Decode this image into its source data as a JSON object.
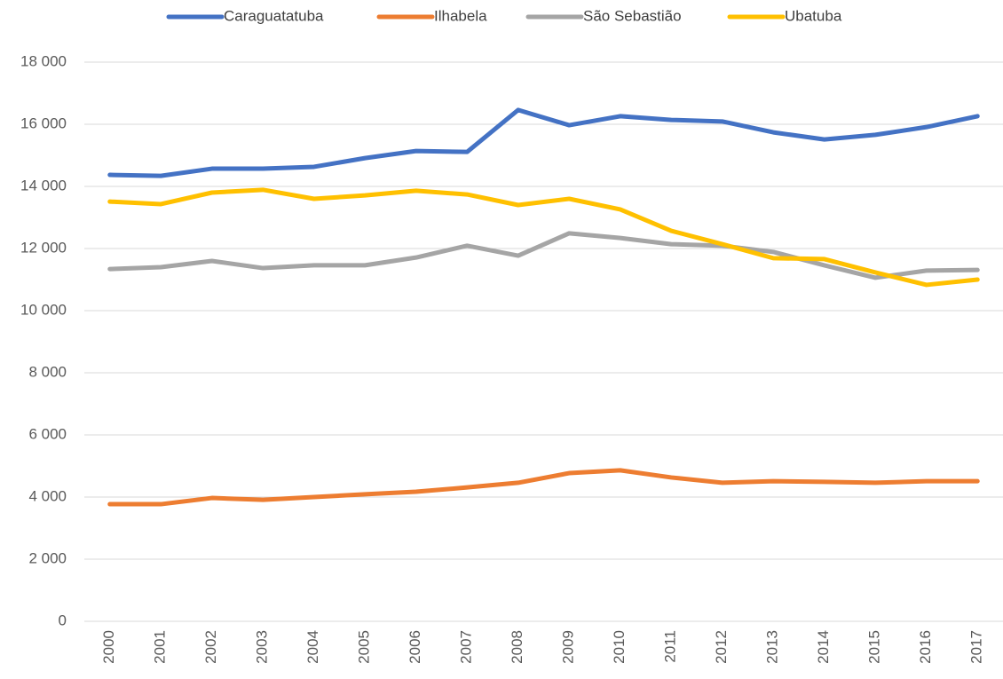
{
  "chart_data": {
    "type": "line",
    "categories": [
      "2000",
      "2001",
      "2002",
      "2003",
      "2004",
      "2005",
      "2006",
      "2007",
      "2008",
      "2009",
      "2010",
      "2011",
      "2012",
      "2013",
      "2014",
      "2015",
      "2016",
      "2017"
    ],
    "series": [
      {
        "name": "Caraguatatuba",
        "color": "#4472c4",
        "values": [
          14370,
          14340,
          14570,
          14570,
          14630,
          14910,
          15140,
          15110,
          16460,
          15970,
          16260,
          16140,
          16090,
          15740,
          15510,
          15660,
          15910,
          16260
        ]
      },
      {
        "name": "Ilhabela",
        "color": "#ed7d31",
        "values": [
          3770,
          3770,
          3970,
          3910,
          4000,
          4090,
          4170,
          4310,
          4460,
          4770,
          4860,
          4630,
          4460,
          4510,
          4490,
          4460,
          4510,
          4510
        ]
      },
      {
        "name": "São Sebastião",
        "color": "#a5a5a5",
        "values": [
          11340,
          11400,
          11600,
          11370,
          11460,
          11460,
          11710,
          12090,
          11770,
          12490,
          12340,
          12140,
          12090,
          11890,
          11460,
          11060,
          11290,
          11310
        ]
      },
      {
        "name": "Ubatuba",
        "color": "#ffc000",
        "values": [
          13510,
          13430,
          13800,
          13890,
          13600,
          13710,
          13860,
          13740,
          13400,
          13600,
          13260,
          12570,
          12140,
          11690,
          11660,
          11230,
          10830,
          11000
        ]
      }
    ],
    "ylim": [
      0,
      18000
    ],
    "yticks": [
      0,
      {
        "value": 2000,
        "label": "2 000"
      },
      {
        "value": 4000,
        "label": "4 000"
      },
      {
        "value": 6000,
        "label": "6 000"
      },
      {
        "value": 8000,
        "label": "8 000"
      },
      {
        "value": 10000,
        "label": "10 000"
      },
      {
        "value": 12000,
        "label": "12 000"
      },
      {
        "value": 14000,
        "label": "14 000"
      },
      {
        "value": 16000,
        "label": "16 000"
      },
      {
        "value": 18000,
        "label": "18 000"
      }
    ],
    "grid": true,
    "legend": "top"
  }
}
